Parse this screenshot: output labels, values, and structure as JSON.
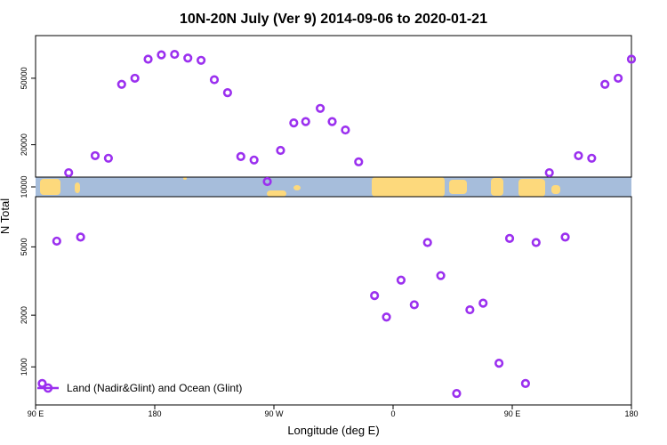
{
  "chart_data": {
    "type": "scatter",
    "title": "10N-20N July (Ver 9)   2014-09-06 to 2020-01-21",
    "xlabel": "Longitude (deg E)",
    "ylabel": "N Total",
    "x_ticks": [
      {
        "value": 90,
        "label": "90 E"
      },
      {
        "value": 180,
        "label": "180"
      },
      {
        "value": 270,
        "label": "90 W"
      },
      {
        "value": 360,
        "label": "0"
      },
      {
        "value": 450,
        "label": "90 E"
      },
      {
        "value": 540,
        "label": "180"
      }
    ],
    "xlim": [
      90,
      540
    ],
    "upper_panel": {
      "scale": "log",
      "ylim": [
        12800,
        90000
      ],
      "y_ticks": [
        20000,
        50000
      ]
    },
    "lower_panel": {
      "scale": "log",
      "ylim": [
        600,
        9800
      ],
      "y_ticks": [
        1000,
        2000,
        5000
      ]
    },
    "map_strip": {
      "y_label": "10000",
      "ocean_color": "#a6bddb",
      "land_color": "#fdd97c"
    },
    "series": [
      {
        "name": "Land (Nadir&Glint) and Ocean (Glint)",
        "color": "#9b30ef",
        "points": [
          [
            95,
            800
          ],
          [
            106,
            5400
          ],
          [
            115,
            13600
          ],
          [
            124,
            5700
          ],
          [
            135,
            17200
          ],
          [
            145,
            16600
          ],
          [
            155,
            46000
          ],
          [
            165,
            50000
          ],
          [
            175,
            65000
          ],
          [
            185,
            69000
          ],
          [
            195,
            69500
          ],
          [
            205,
            66000
          ],
          [
            215,
            64000
          ],
          [
            225,
            49000
          ],
          [
            235,
            41000
          ],
          [
            245,
            17000
          ],
          [
            255,
            16200
          ],
          [
            265,
            12000
          ],
          [
            275,
            18500
          ],
          [
            285,
            27000
          ],
          [
            294,
            27500
          ],
          [
            305,
            33000
          ],
          [
            314,
            27500
          ],
          [
            324,
            24500
          ],
          [
            334,
            15800
          ],
          [
            346,
            2600
          ],
          [
            355,
            1950
          ],
          [
            366,
            3200
          ],
          [
            376,
            2300
          ],
          [
            386,
            5300
          ],
          [
            396,
            3400
          ],
          [
            408,
            700
          ],
          [
            418,
            2150
          ],
          [
            428,
            2350
          ],
          [
            440,
            1050
          ],
          [
            448,
            5600
          ],
          [
            460,
            800
          ],
          [
            468,
            5300
          ],
          [
            478,
            13600
          ],
          [
            490,
            5700
          ],
          [
            500,
            17200
          ],
          [
            510,
            16600
          ],
          [
            520,
            46000
          ],
          [
            530,
            50000
          ],
          [
            540,
            65000
          ]
        ]
      }
    ],
    "legend": {
      "position": "bottom-left"
    }
  }
}
